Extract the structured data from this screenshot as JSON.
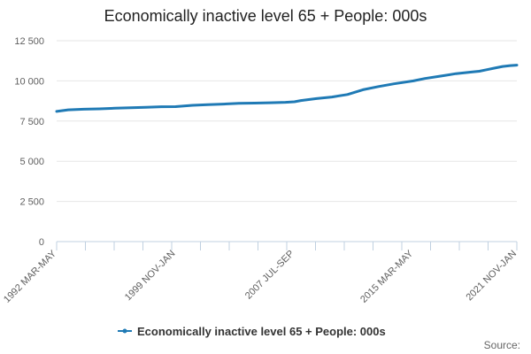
{
  "chart_data": {
    "type": "line",
    "title": "Economically inactive level 65 + People: 000s",
    "xlabel": "",
    "ylabel": "",
    "ylim": [
      0,
      12500
    ],
    "yticks": [
      0,
      2500,
      5000,
      7500,
      10000,
      12500
    ],
    "ytick_labels": [
      "0",
      "2 500",
      "5 000",
      "7 500",
      "10 000",
      "12 500"
    ],
    "xtick_labels": [
      "1992 MAR-MAY",
      "1999 NOV-JAN",
      "2007 JUL-SEP",
      "2015 MAR-MAY",
      "2021 NOV-JAN"
    ],
    "xtick_positions": [
      1992.25,
      1999.92,
      2007.58,
      2015.25,
      2021.92
    ],
    "xlim": [
      1992.25,
      2021.92
    ],
    "grid": true,
    "legend_position": "bottom",
    "series": [
      {
        "name": "Economically inactive level 65 + People: 000s",
        "color": "#1f7ab5",
        "x": [
          1992.25,
          1993,
          1994,
          1995,
          1996,
          1997,
          1998,
          1999,
          1999.92,
          2001,
          2002,
          2003,
          2004,
          2005,
          2006,
          2007,
          2007.58,
          2008,
          2009,
          2010,
          2011,
          2012,
          2013,
          2014,
          2015.25,
          2016,
          2017,
          2018,
          2019,
          2019.5,
          2020,
          2020.5,
          2021,
          2021.5,
          2021.92
        ],
        "y": [
          8100,
          8200,
          8240,
          8260,
          8300,
          8330,
          8360,
          8390,
          8400,
          8480,
          8520,
          8560,
          8600,
          8620,
          8640,
          8670,
          8700,
          8780,
          8900,
          9000,
          9150,
          9450,
          9650,
          9820,
          10000,
          10150,
          10300,
          10450,
          10550,
          10600,
          10700,
          10800,
          10900,
          10950,
          10980
        ]
      }
    ],
    "source_label": "Source:"
  }
}
